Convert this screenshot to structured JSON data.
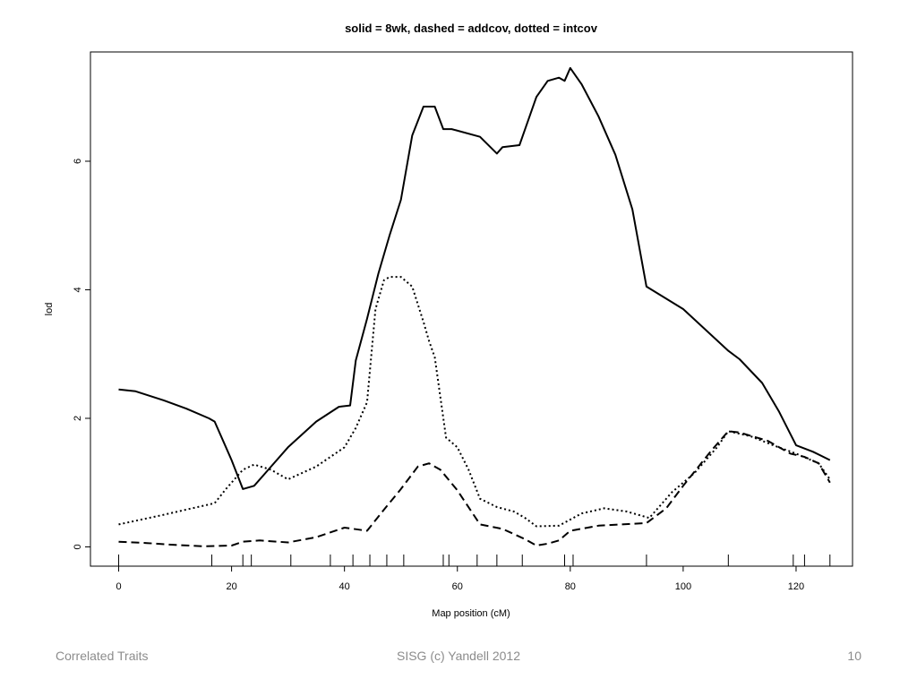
{
  "chart_data": {
    "type": "line",
    "title": "solid = 8wk, dashed = addcov, dotted = intcov",
    "xlabel": "Map position (cM)",
    "ylabel": "lod",
    "xlim": [
      -5,
      130
    ],
    "ylim": [
      -0.3,
      7.7
    ],
    "xticks": [
      0,
      20,
      40,
      60,
      80,
      100,
      120
    ],
    "yticks": [
      0,
      2,
      4,
      6
    ],
    "markers": [
      0,
      16.5,
      22,
      23.5,
      30.5,
      37.5,
      41.5,
      44.5,
      47.5,
      50.5,
      57.5,
      58.5,
      63.5,
      67,
      71.5,
      79,
      80.5,
      93.5,
      108,
      119.5,
      121.5,
      126
    ],
    "series": [
      {
        "name": "8wk",
        "style": "solid",
        "x": [
          0,
          3,
          8,
          12,
          16,
          17,
          20,
          22,
          24,
          26,
          30,
          35,
          39,
          41,
          42,
          44,
          46,
          48,
          50,
          52,
          54,
          56,
          57.5,
          59,
          64,
          67,
          68,
          71,
          72,
          74,
          76,
          78,
          79,
          80,
          82,
          85,
          88,
          91,
          93.5,
          100,
          108,
          110,
          114,
          117,
          120,
          123,
          126
        ],
        "y": [
          2.45,
          2.42,
          2.28,
          2.15,
          2.0,
          1.95,
          1.35,
          0.9,
          0.95,
          1.15,
          1.55,
          1.95,
          2.18,
          2.2,
          2.9,
          3.55,
          4.25,
          4.85,
          5.4,
          6.4,
          6.85,
          6.85,
          6.5,
          6.5,
          6.38,
          6.12,
          6.22,
          6.25,
          6.5,
          7.0,
          7.25,
          7.3,
          7.25,
          7.45,
          7.2,
          6.7,
          6.1,
          5.25,
          4.05,
          3.7,
          3.05,
          2.92,
          2.55,
          2.1,
          1.58,
          1.48,
          1.35
        ]
      },
      {
        "name": "addcov",
        "style": "dashed",
        "x": [
          0,
          5,
          10,
          15,
          20,
          22,
          25,
          30,
          35,
          40,
          44,
          47,
          50,
          53,
          55,
          57,
          60,
          64,
          68,
          72,
          74,
          76,
          78,
          80,
          85,
          93.5,
          97,
          100,
          105,
          108,
          110,
          115,
          119,
          121.5,
          124,
          126
        ],
        "y": [
          0.08,
          0.06,
          0.03,
          0.01,
          0.02,
          0.08,
          0.1,
          0.07,
          0.15,
          0.3,
          0.25,
          0.58,
          0.9,
          1.25,
          1.3,
          1.2,
          0.88,
          0.35,
          0.28,
          0.12,
          0.02,
          0.05,
          0.1,
          0.25,
          0.33,
          0.37,
          0.6,
          0.95,
          1.5,
          1.8,
          1.78,
          1.65,
          1.45,
          1.4,
          1.3,
          1.0
        ]
      },
      {
        "name": "intcov",
        "style": "dotted",
        "x": [
          0,
          8,
          13,
          17,
          19,
          22,
          24,
          27,
          30,
          35,
          40,
          42,
          44,
          45.5,
          47,
          48,
          50,
          52,
          54,
          55,
          56,
          58,
          60,
          62,
          64,
          67,
          70,
          72,
          74,
          78,
          82,
          86,
          90,
          94,
          98,
          102,
          106,
          108,
          112,
          116,
          120,
          124,
          126
        ],
        "y": [
          0.35,
          0.5,
          0.6,
          0.68,
          0.9,
          1.2,
          1.28,
          1.2,
          1.05,
          1.25,
          1.55,
          1.85,
          2.25,
          3.7,
          4.15,
          4.2,
          4.2,
          4.05,
          3.5,
          3.2,
          2.95,
          1.7,
          1.55,
          1.2,
          0.75,
          0.62,
          0.55,
          0.45,
          0.32,
          0.33,
          0.52,
          0.6,
          0.55,
          0.45,
          0.85,
          1.15,
          1.55,
          1.8,
          1.72,
          1.58,
          1.45,
          1.3,
          1.05
        ]
      }
    ]
  },
  "footer": {
    "left": "Correlated Traits",
    "center": "SISG (c) Yandell 2012",
    "right": "10"
  }
}
